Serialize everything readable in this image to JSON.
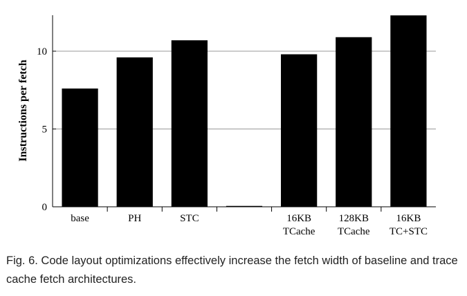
{
  "chart_data": {
    "type": "bar",
    "categories": [
      [
        "base"
      ],
      [
        "PH"
      ],
      [
        "STC"
      ],
      [
        ""
      ],
      [
        "16KB",
        "TCache"
      ],
      [
        "128KB",
        "TCache"
      ],
      [
        "16KB",
        "TC+STC"
      ]
    ],
    "values": [
      7.6,
      9.6,
      10.7,
      0,
      9.8,
      10.9,
      12.3
    ],
    "ylabel": "Instructions per fetch",
    "ylim": [
      0,
      12.3
    ],
    "yticks": [
      0,
      5,
      10
    ],
    "grid": true,
    "bar_color": "#000000",
    "grid_color": "#999999"
  },
  "caption": "Fig. 6. Code layout optimizations effectively increase the fetch width of baseline and trace cache fetch architectures."
}
